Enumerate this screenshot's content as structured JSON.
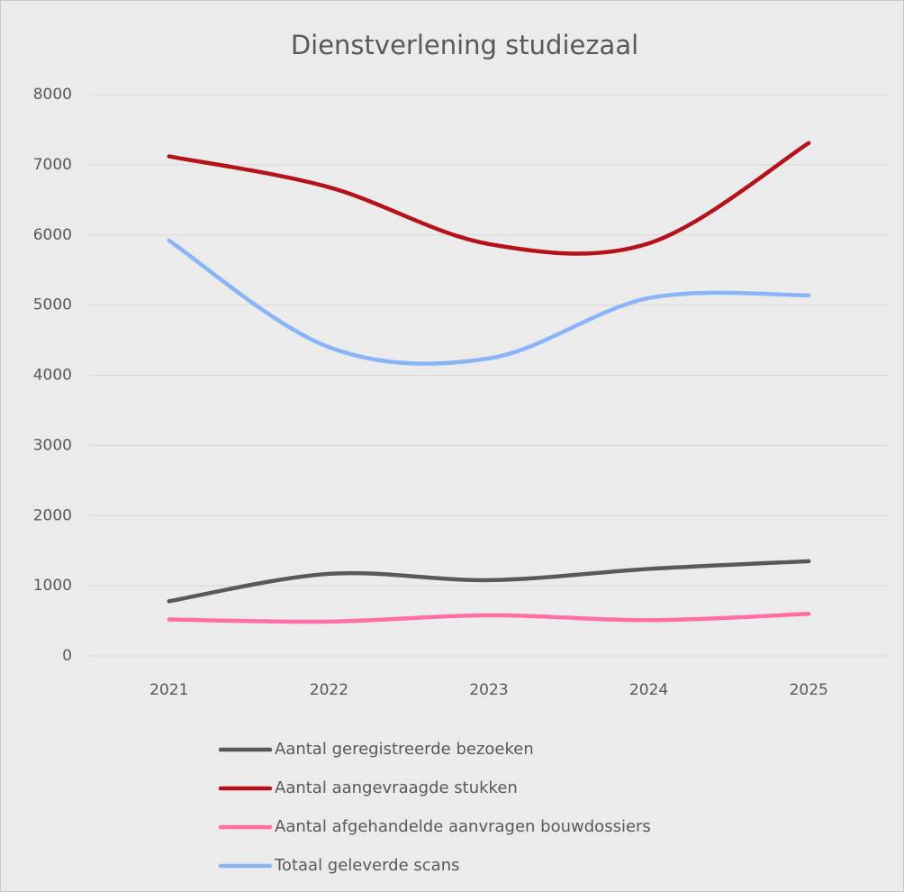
{
  "chart_data": {
    "type": "line",
    "title": "Dienstverlening studiezaal",
    "categories": [
      "2021",
      "2022",
      "2023",
      "2024",
      "2025"
    ],
    "series": [
      {
        "name": "Aantal geregistreerde bezoeken",
        "color": "#595959",
        "values": [
          780,
          1170,
          1080,
          1240,
          1350
        ]
      },
      {
        "name": "Aantal aangevraagde stukken",
        "color": "#b5121b",
        "values": [
          7120,
          6680,
          5870,
          5880,
          7310
        ]
      },
      {
        "name": "Aantal afgehandelde aanvragen bouwdossiers",
        "color": "#ff6fa5",
        "values": [
          520,
          490,
          580,
          510,
          600
        ]
      },
      {
        "name": "Totaal geleverde scans",
        "color": "#8ab4f8",
        "values": [
          5920,
          4400,
          4240,
          5100,
          5140
        ]
      }
    ],
    "ylim": [
      0,
      8000
    ],
    "yticks": [
      0,
      1000,
      2000,
      3000,
      4000,
      5000,
      6000,
      7000,
      8000
    ],
    "grid": true,
    "legend": "bottom"
  }
}
